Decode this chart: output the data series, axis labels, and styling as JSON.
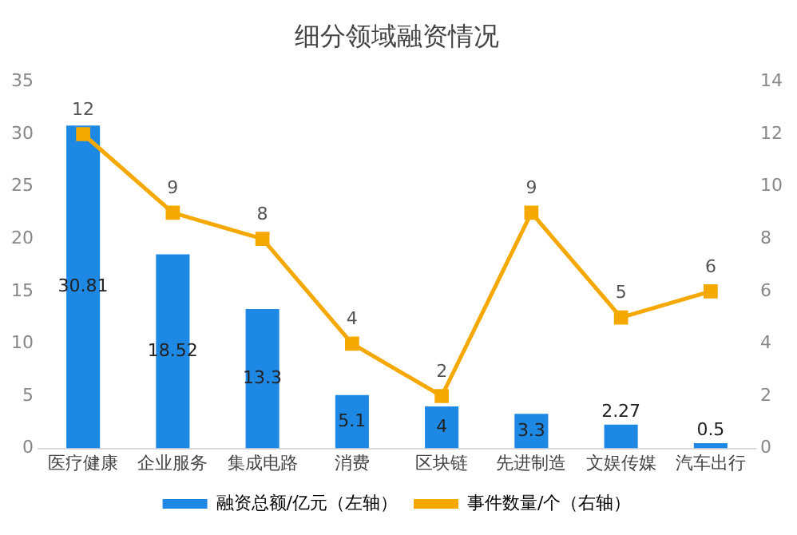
{
  "chart_data": {
    "type": "bar",
    "title": "细分领域融资情况",
    "categories": [
      "医疗健康",
      "企业服务",
      "集成电路",
      "消费",
      "区块链",
      "先进制造",
      "文娱传媒",
      "汽车出行"
    ],
    "series": [
      {
        "name": "融资总额/亿元（左轴）",
        "color": "#1e88e5",
        "values": [
          30.81,
          18.52,
          13.3,
          5.1,
          4,
          3.3,
          2.27,
          0.5
        ]
      },
      {
        "name": "事件数量/个（右轴）",
        "type": "line",
        "axis": "y2",
        "color": "#f5a800",
        "values": [
          12,
          9,
          8,
          4,
          2,
          9,
          5,
          6
        ]
      }
    ],
    "ylim": [
      0,
      35
    ],
    "yticks": [
      0,
      5,
      10,
      15,
      20,
      25,
      30,
      35
    ],
    "y2lim": [
      0,
      14
    ],
    "y2ticks": [
      0,
      2,
      4,
      6,
      8,
      10,
      12,
      14
    ],
    "data_labels": true,
    "grid": false,
    "legend": "bottom",
    "marker": "square",
    "line_style": "solid"
  }
}
